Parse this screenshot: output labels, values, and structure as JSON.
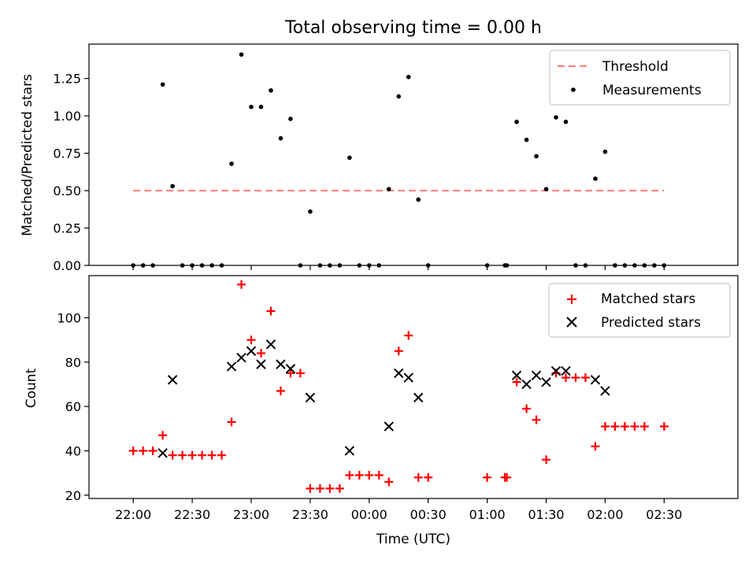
{
  "title": "Total observing time = 0.00 h",
  "chart_data": [
    {
      "type": "scatter",
      "ylabel": "Matched/Predicted stars",
      "ylim": [
        0,
        1.48
      ],
      "xlim_minutes": [
        -22.5,
        307.5
      ],
      "yticks": [
        0,
        0.25,
        0.5,
        0.75,
        1.0,
        1.25
      ],
      "ytick_labels": [
        "0.00",
        "0.25",
        "0.50",
        "0.75",
        "1.00",
        "1.25"
      ],
      "threshold": {
        "name": "Threshold",
        "value": 0.5,
        "x_range": [
          "22:00",
          "02:30"
        ],
        "color": "#ff7f7f",
        "style": "dashed"
      },
      "legend": {
        "position": "upper right",
        "entries": [
          "Threshold",
          "Measurements"
        ]
      },
      "series": [
        {
          "name": "Measurements",
          "marker": "dot",
          "color": "#000000",
          "x": [
            "22:00",
            "22:05",
            "22:10",
            "22:15",
            "22:20",
            "22:25",
            "22:30",
            "22:35",
            "22:40",
            "22:45",
            "22:50",
            "22:55",
            "23:00",
            "23:05",
            "23:10",
            "23:15",
            "23:20",
            "23:25",
            "23:30",
            "23:35",
            "23:40",
            "23:45",
            "23:50",
            "23:55",
            "00:00",
            "00:05",
            "00:10",
            "00:15",
            "00:20",
            "00:25",
            "00:30",
            "01:00",
            "01:09",
            "01:10",
            "01:15",
            "01:20",
            "01:25",
            "01:30",
            "01:35",
            "01:40",
            "01:45",
            "01:50",
            "01:55",
            "02:00",
            "02:05",
            "02:10",
            "02:15",
            "02:20",
            "02:25",
            "02:30"
          ],
          "y": [
            0,
            0,
            0,
            1.21,
            0.53,
            0,
            0,
            0,
            0,
            0,
            0.68,
            1.41,
            1.06,
            1.06,
            1.17,
            0.85,
            0.98,
            0,
            0.36,
            0,
            0,
            0,
            0.72,
            0,
            0,
            0,
            0.51,
            1.13,
            1.26,
            0.44,
            0,
            0,
            0,
            0,
            0.96,
            0.84,
            0.73,
            0.51,
            0.99,
            0.96,
            0,
            0,
            0.58,
            0.76,
            0,
            0,
            0,
            0,
            0,
            0
          ]
        }
      ]
    },
    {
      "type": "scatter",
      "xlabel": "Time (UTC)",
      "ylabel": "Count",
      "ylim": [
        18.5,
        119
      ],
      "yticks": [
        20,
        40,
        60,
        80,
        100
      ],
      "xticks": [
        "22:00",
        "22:30",
        "23:00",
        "23:30",
        "00:00",
        "00:30",
        "01:00",
        "01:30",
        "02:00",
        "02:30"
      ],
      "legend": {
        "position": "upper right",
        "entries": [
          "Matched stars",
          "Predicted stars"
        ]
      },
      "series": [
        {
          "name": "Matched stars",
          "marker": "plus",
          "color": "#ff0000",
          "x": [
            "22:00",
            "22:05",
            "22:10",
            "22:15",
            "22:20",
            "22:25",
            "22:30",
            "22:35",
            "22:40",
            "22:45",
            "22:50",
            "22:55",
            "23:00",
            "23:05",
            "23:10",
            "23:15",
            "23:20",
            "23:25",
            "23:30",
            "23:35",
            "23:40",
            "23:45",
            "23:50",
            "23:55",
            "00:00",
            "00:05",
            "00:10",
            "00:15",
            "00:20",
            "00:25",
            "00:30",
            "01:00",
            "01:09",
            "01:10",
            "01:15",
            "01:20",
            "01:25",
            "01:30",
            "01:35",
            "01:40",
            "01:45",
            "01:50",
            "01:55",
            "02:00",
            "02:05",
            "02:10",
            "02:15",
            "02:20",
            "02:30"
          ],
          "y": [
            40,
            40,
            40,
            47,
            38,
            38,
            38,
            38,
            38,
            38,
            53,
            115,
            90,
            84,
            103,
            67,
            75,
            75,
            23,
            23,
            23,
            23,
            29,
            29,
            29,
            29,
            26,
            85,
            92,
            28,
            28,
            28,
            28,
            28,
            71,
            59,
            54,
            36,
            75,
            73,
            73,
            73,
            42,
            51,
            51,
            51,
            51,
            51,
            51
          ]
        },
        {
          "name": "Predicted stars",
          "marker": "x",
          "color": "#000000",
          "x": [
            "22:15",
            "22:20",
            "22:50",
            "22:55",
            "23:00",
            "23:05",
            "23:10",
            "23:15",
            "23:20",
            "23:30",
            "23:50",
            "00:10",
            "00:15",
            "00:20",
            "00:25",
            "01:15",
            "01:20",
            "01:25",
            "01:30",
            "01:35",
            "01:40",
            "01:55",
            "02:00"
          ],
          "y": [
            39,
            72,
            78,
            82,
            85,
            79,
            88,
            79,
            77,
            64,
            40,
            51,
            75,
            73,
            64,
            74,
            70,
            74,
            71,
            76,
            76,
            72,
            67
          ]
        }
      ]
    }
  ]
}
